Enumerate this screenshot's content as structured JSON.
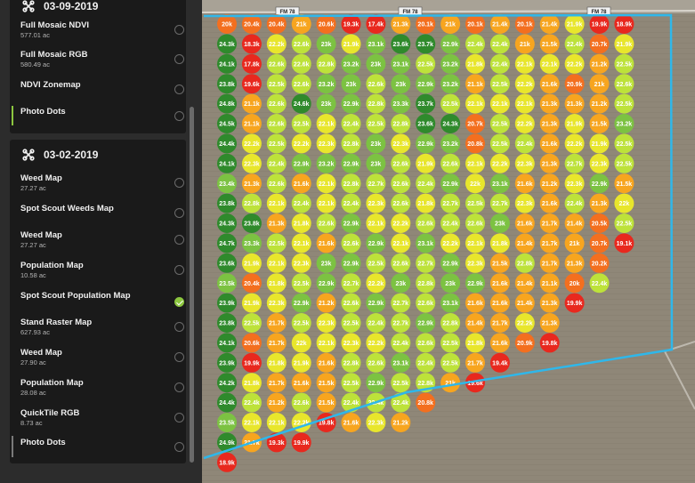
{
  "sidebar": {
    "group1": {
      "date": "03-09-2019",
      "items": [
        {
          "title": "Full Mosaic NDVI",
          "area": "577.01 ac"
        },
        {
          "title": "Full Mosaic RGB",
          "area": "580.49 ac"
        },
        {
          "title": "NDVI Zonemap",
          "area": ""
        },
        {
          "title": "Photo Dots",
          "area": ""
        }
      ]
    },
    "group2": {
      "date": "03-02-2019",
      "items": [
        {
          "title": "Weed Map",
          "area": "27.27 ac"
        },
        {
          "title": "Spot Scout Weeds Map",
          "area": ""
        },
        {
          "title": "Weed Map",
          "area": "27.27 ac"
        },
        {
          "title": "Population Map",
          "area": "10.58 ac"
        },
        {
          "title": "Spot Scout Population Map",
          "area": ""
        },
        {
          "title": "Stand Raster Map",
          "area": "627.93 ac"
        },
        {
          "title": "Weed Map",
          "area": "27.90 ac"
        },
        {
          "title": "Population Map",
          "area": "28.08 ac"
        },
        {
          "title": "QuickTile RGB",
          "area": "8.73 ac"
        },
        {
          "title": "Photo Dots",
          "area": ""
        }
      ]
    },
    "selected_group2_index": 4
  },
  "map": {
    "road_signs": [
      "FM 78",
      "FM 78",
      "FM 78"
    ],
    "columns": [
      [
        "20k",
        "24.3k",
        "24.1k",
        "23.8k",
        "24.8k",
        "24.5k",
        "24.4k",
        "24.1k",
        "23.4k",
        "23.8k",
        "24.3k",
        "24.7k",
        "23.6k",
        "23.5k",
        "23.9k",
        "23.8k",
        "24.1k",
        "23.9k",
        "24.2k",
        "24.4k",
        "23.5k",
        "24.9k",
        "18.9k"
      ],
      [
        "20.4k",
        "18.3k",
        "17.8k",
        "19.6k",
        "21.1k",
        "21.1k",
        "22.2k",
        "22.3k",
        "21.3k",
        "22.8k",
        "23.8k",
        "23.3k",
        "21.9k",
        "20.4k",
        "21.9k",
        "22.5k",
        "20.6k",
        "19.9k",
        "21.8k",
        "22.4k",
        "22.1k",
        "21.7k"
      ],
      [
        "20.4k",
        "22.2k",
        "22.6k",
        "22.5k",
        "22.6k",
        "22.6k",
        "22.5k",
        "22.4k",
        "22.6k",
        "22.1k",
        "21.3k",
        "22.5k",
        "22.1k",
        "21.8k",
        "22.3k",
        "21.7k",
        "21.7k",
        "21.8k",
        "21.7k",
        "21.2k",
        "22.1k",
        "19.3k"
      ],
      [
        "21k",
        "22.6k",
        "22.6k",
        "22.6k",
        "24.6k",
        "22.5k",
        "22.2k",
        "22.9k",
        "21.6k",
        "22.4k",
        "21.8k",
        "22.1k",
        "22.3k",
        "22.5k",
        "22.9k",
        "22.5k",
        "22k",
        "21.9k",
        "21.6k",
        "22.6k",
        "22.2k",
        "19.9k"
      ],
      [
        "20.6k",
        "23k",
        "22.8k",
        "23.2k",
        "23k",
        "22.1k",
        "22.3k",
        "23.2k",
        "22.1k",
        "22.1k",
        "22.6k",
        "21.6k",
        "23k",
        "22.9k",
        "21.2k",
        "22.3k",
        "22.1k",
        "21.6k",
        "21.5k",
        "21.5k",
        "19.8k"
      ],
      [
        "19.3k",
        "21.9k",
        "23.2k",
        "23k",
        "22.9k",
        "22.4k",
        "22.8k",
        "22.9k",
        "22.8k",
        "22.4k",
        "22.9k",
        "22.6k",
        "22.9k",
        "22.7k",
        "22.6k",
        "22.5k",
        "22.3k",
        "22.8k",
        "22.5k",
        "22.4k",
        "21.6k"
      ],
      [
        "17.4k",
        "23.1k",
        "23k",
        "22.6k",
        "22.8k",
        "22.5k",
        "23k",
        "23k",
        "22.7k",
        "22.3k",
        "22.1k",
        "22.9k",
        "22.5k",
        "22.2k",
        "22.9k",
        "22.4k",
        "22.2k",
        "22.6k",
        "22.9k",
        "22.4k",
        "22.3k"
      ],
      [
        "21.3k",
        "23.6k",
        "23.1k",
        "23k",
        "23.3k",
        "22.8k",
        "22.3k",
        "22.6k",
        "22.6k",
        "22.6k",
        "22.2k",
        "22.1k",
        "22.6k",
        "23k",
        "22.7k",
        "22.7k",
        "22.4k",
        "23.1k",
        "22.5k",
        "22.4k",
        "21.2k"
      ],
      [
        "20.1k",
        "23.7k",
        "22.5k",
        "22.9k",
        "23.7k",
        "23.6k",
        "22.9k",
        "21.9k",
        "22.4k",
        "21.8k",
        "22.6k",
        "23.1k",
        "22.7k",
        "22.8k",
        "22.6k",
        "22.9k",
        "22.6k",
        "22.4k",
        "22.8k",
        "20.8k"
      ],
      [
        "21k",
        "22.9k",
        "23.2k",
        "23.2k",
        "22.5k",
        "24.3k",
        "23.2k",
        "22.6k",
        "22.9k",
        "22.7k",
        "22.4k",
        "22.2k",
        "22.9k",
        "23k",
        "23.1k",
        "22.8k",
        "22.5k",
        "22.5k",
        "21k"
      ],
      [
        "20.1k",
        "22.4k",
        "21.8k",
        "21.1k",
        "22.1k",
        "20.7k",
        "20.8k",
        "22.1k",
        "22k",
        "22.5k",
        "22.6k",
        "22.1k",
        "22.3k",
        "22.9k",
        "21.6k",
        "21.4k",
        "21.8k",
        "21.7k",
        "19.6k"
      ],
      [
        "21.4k",
        "22.4k",
        "22.4k",
        "22.5k",
        "22.1k",
        "22.5k",
        "22.5k",
        "22.2k",
        "23.1k",
        "22.7k",
        "23k",
        "21.8k",
        "21.5k",
        "21.6k",
        "21.6k",
        "21.7k",
        "21.6k",
        "19.4k"
      ],
      [
        "20.1k",
        "21k",
        "22.1k",
        "22.2k",
        "22.1k",
        "22.2k",
        "22.4k",
        "22.3k",
        "21.6k",
        "22.3k",
        "21.6k",
        "21.4k",
        "22.8k",
        "21.4k",
        "21.4k",
        "22.2k",
        "20.9k"
      ],
      [
        "21.4k",
        "21.5k",
        "22.1k",
        "21.6k",
        "21.3k",
        "21.3k",
        "21.6k",
        "21.3k",
        "21.2k",
        "21.6k",
        "21.7k",
        "21.7k",
        "21.7k",
        "21.1k",
        "21.3k",
        "21.3k",
        "19.8k"
      ],
      [
        "21.9k",
        "22.4k",
        "22.2k",
        "20.9k",
        "21.3k",
        "21.9k",
        "22.2k",
        "22.7k",
        "22.3k",
        "22.4k",
        "21.4k",
        "21k",
        "21.3k",
        "20k",
        "19.9k"
      ],
      [
        "19.9k",
        "20.7k",
        "21.2k",
        "21k",
        "21.2k",
        "21.5k",
        "21.9k",
        "22.3k",
        "22.9k",
        "21.3k",
        "20.5k",
        "20.7k",
        "20.2k",
        "22.4k"
      ],
      [
        "18.9k",
        "21.9k",
        "22.5k",
        "22.6k",
        "22.5k",
        "23.2k",
        "22.5k",
        "22.5k",
        "21.5k",
        "22k",
        "22.5k",
        "19.1k"
      ]
    ],
    "colors": {
      "boundary": "#2fb7ea",
      "red": "#e8281e",
      "orange": "#f36f1f",
      "light_orange": "#f7a51f",
      "yellow": "#e8e62c",
      "yellow_green": "#bde23a",
      "green": "#7cc242",
      "dark_green": "#2f8a2c"
    }
  }
}
